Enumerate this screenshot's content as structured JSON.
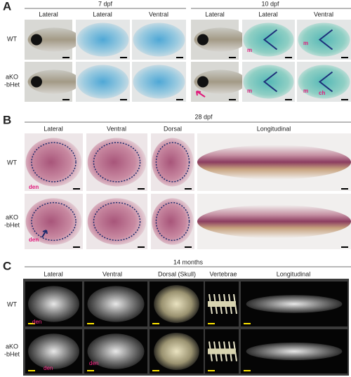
{
  "panels": [
    {
      "letter": "A",
      "groups": [
        {
          "title": "7 dpf",
          "columns": [
            "Lateral",
            "Lateral",
            "Ventral"
          ]
        },
        {
          "title": "10 dpf",
          "columns": [
            "Lateral",
            "Lateral",
            "Ventral"
          ]
        }
      ],
      "rows": [
        [
          "WT"
        ],
        [
          "aKO",
          "-bHet"
        ]
      ],
      "annotations": [
        "m",
        "m",
        "m",
        "m",
        "ch"
      ]
    },
    {
      "letter": "B",
      "groups": [
        {
          "title": "28 dpf",
          "columns": [
            "Lateral",
            "Ventral",
            "Dorsal",
            "Longitudinal"
          ]
        }
      ],
      "rows": [
        [
          "WT"
        ],
        [
          "aKO",
          "-bHet"
        ]
      ],
      "annotations": [
        "den",
        "den"
      ]
    },
    {
      "letter": "C",
      "groups": [
        {
          "title": "14 months",
          "columns": [
            "Lateral",
            "Ventral",
            "Dorsal (Skull)",
            "Vertebrae",
            "Longitudinal"
          ]
        }
      ],
      "rows": [
        [
          "WT"
        ],
        [
          "aKO",
          "-bHet"
        ]
      ],
      "annotations": [
        "den",
        "den",
        "den"
      ]
    }
  ]
}
